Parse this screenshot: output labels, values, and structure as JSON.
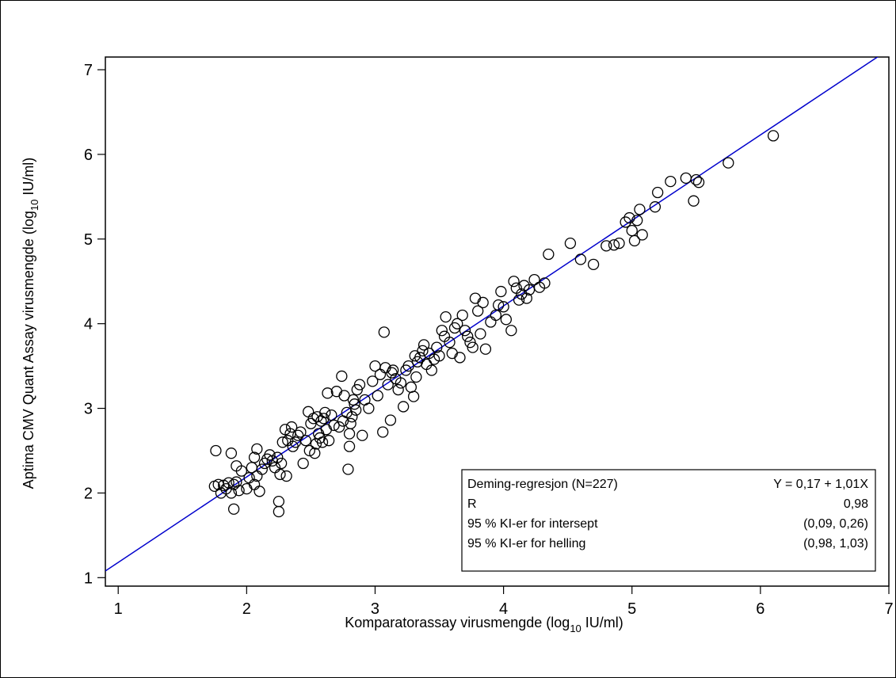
{
  "chart_data": {
    "type": "scatter",
    "xlabel_main": "Komparatorassay virusmengde (log",
    "xlabel_sub": "10",
    "xlabel_tail": " IU/ml)",
    "ylabel_main": "Aptima CMV Quant Assay virusmengde (log",
    "ylabel_sub": "10",
    "ylabel_tail": " IU/ml)",
    "xlim": [
      0.9,
      7.0
    ],
    "ylim": [
      0.9,
      7.15
    ],
    "xticks": [
      "1",
      "2",
      "3",
      "4",
      "5",
      "6",
      "7"
    ],
    "yticks": [
      "1",
      "2",
      "3",
      "4",
      "5",
      "6",
      "7"
    ],
    "regression": {
      "intercept": 0.17,
      "slope": 1.01,
      "color": "#0000cc"
    },
    "legend": {
      "rows": [
        {
          "label": "Deming-regresjon (N=227)",
          "value": "Y = 0,17 + 1,01X"
        },
        {
          "label": "R",
          "value": "0,98"
        },
        {
          "label": "95 % KI-er for intersept",
          "value": "(0,09, 0,26)"
        },
        {
          "label": "95 % KI-er for helling",
          "value": "(0,98, 1,03)"
        }
      ],
      "placement": "bottom-right"
    },
    "points": [
      [
        1.75,
        2.08
      ],
      [
        1.78,
        2.1
      ],
      [
        1.8,
        2.0
      ],
      [
        1.82,
        2.09
      ],
      [
        1.84,
        2.05
      ],
      [
        1.86,
        2.12
      ],
      [
        1.88,
        2.0
      ],
      [
        1.9,
        2.1
      ],
      [
        1.92,
        2.13
      ],
      [
        1.94,
        2.03
      ],
      [
        1.76,
        2.5
      ],
      [
        1.88,
        2.47
      ],
      [
        1.9,
        1.81
      ],
      [
        1.92,
        2.32
      ],
      [
        1.96,
        2.26
      ],
      [
        2.0,
        2.05
      ],
      [
        2.02,
        2.18
      ],
      [
        2.04,
        2.3
      ],
      [
        2.06,
        2.42
      ],
      [
        2.08,
        2.52
      ],
      [
        2.06,
        2.1
      ],
      [
        2.08,
        2.2
      ],
      [
        2.1,
        2.02
      ],
      [
        2.12,
        2.28
      ],
      [
        2.14,
        2.35
      ],
      [
        2.16,
        2.4
      ],
      [
        2.18,
        2.45
      ],
      [
        2.2,
        2.38
      ],
      [
        2.22,
        2.3
      ],
      [
        2.24,
        2.42
      ],
      [
        2.25,
        1.9
      ],
      [
        2.25,
        1.78
      ],
      [
        2.26,
        2.22
      ],
      [
        2.27,
        2.35
      ],
      [
        2.28,
        2.6
      ],
      [
        2.3,
        2.75
      ],
      [
        2.31,
        2.2
      ],
      [
        2.32,
        2.62
      ],
      [
        2.34,
        2.7
      ],
      [
        2.35,
        2.78
      ],
      [
        2.36,
        2.55
      ],
      [
        2.38,
        2.6
      ],
      [
        2.4,
        2.68
      ],
      [
        2.42,
        2.72
      ],
      [
        2.44,
        2.35
      ],
      [
        2.46,
        2.62
      ],
      [
        2.48,
        2.96
      ],
      [
        2.49,
        2.5
      ],
      [
        2.5,
        2.82
      ],
      [
        2.52,
        2.88
      ],
      [
        2.53,
        2.47
      ],
      [
        2.54,
        2.58
      ],
      [
        2.55,
        2.9
      ],
      [
        2.56,
        2.7
      ],
      [
        2.57,
        2.65
      ],
      [
        2.58,
        2.85
      ],
      [
        2.59,
        2.6
      ],
      [
        2.6,
        2.88
      ],
      [
        2.61,
        2.95
      ],
      [
        2.62,
        2.75
      ],
      [
        2.63,
        3.18
      ],
      [
        2.64,
        2.62
      ],
      [
        2.66,
        2.92
      ],
      [
        2.68,
        2.8
      ],
      [
        2.7,
        3.2
      ],
      [
        2.72,
        2.78
      ],
      [
        2.74,
        3.38
      ],
      [
        2.75,
        2.85
      ],
      [
        2.76,
        3.15
      ],
      [
        2.78,
        2.95
      ],
      [
        2.79,
        2.28
      ],
      [
        2.8,
        2.55
      ],
      [
        2.8,
        2.7
      ],
      [
        2.81,
        2.82
      ],
      [
        2.82,
        2.9
      ],
      [
        2.83,
        3.1
      ],
      [
        2.84,
        3.05
      ],
      [
        2.85,
        2.98
      ],
      [
        2.86,
        3.22
      ],
      [
        2.88,
        3.28
      ],
      [
        2.9,
        2.68
      ],
      [
        2.92,
        3.1
      ],
      [
        2.95,
        3.0
      ],
      [
        2.98,
        3.32
      ],
      [
        3.0,
        3.5
      ],
      [
        3.02,
        3.15
      ],
      [
        3.04,
        3.4
      ],
      [
        3.06,
        2.72
      ],
      [
        3.07,
        3.9
      ],
      [
        3.08,
        3.48
      ],
      [
        3.1,
        3.28
      ],
      [
        3.12,
        2.86
      ],
      [
        3.13,
        3.42
      ],
      [
        3.14,
        3.45
      ],
      [
        3.16,
        3.35
      ],
      [
        3.18,
        3.22
      ],
      [
        3.2,
        3.3
      ],
      [
        3.22,
        3.02
      ],
      [
        3.24,
        3.45
      ],
      [
        3.26,
        3.5
      ],
      [
        3.28,
        3.25
      ],
      [
        3.3,
        3.14
      ],
      [
        3.31,
        3.62
      ],
      [
        3.32,
        3.37
      ],
      [
        3.33,
        3.55
      ],
      [
        3.35,
        3.6
      ],
      [
        3.37,
        3.68
      ],
      [
        3.38,
        3.75
      ],
      [
        3.4,
        3.52
      ],
      [
        3.42,
        3.65
      ],
      [
        3.44,
        3.45
      ],
      [
        3.46,
        3.58
      ],
      [
        3.48,
        3.72
      ],
      [
        3.5,
        3.62
      ],
      [
        3.52,
        3.92
      ],
      [
        3.54,
        3.85
      ],
      [
        3.55,
        4.08
      ],
      [
        3.58,
        3.78
      ],
      [
        3.6,
        3.65
      ],
      [
        3.62,
        3.95
      ],
      [
        3.64,
        4.0
      ],
      [
        3.66,
        3.6
      ],
      [
        3.68,
        4.1
      ],
      [
        3.7,
        3.92
      ],
      [
        3.72,
        3.85
      ],
      [
        3.74,
        3.78
      ],
      [
        3.76,
        3.72
      ],
      [
        3.78,
        4.3
      ],
      [
        3.8,
        4.15
      ],
      [
        3.82,
        3.88
      ],
      [
        3.84,
        4.25
      ],
      [
        3.86,
        3.7
      ],
      [
        3.9,
        4.02
      ],
      [
        3.94,
        4.1
      ],
      [
        3.96,
        4.22
      ],
      [
        3.98,
        4.38
      ],
      [
        4.0,
        4.2
      ],
      [
        4.02,
        4.05
      ],
      [
        4.06,
        3.92
      ],
      [
        4.08,
        4.5
      ],
      [
        4.1,
        4.42
      ],
      [
        4.12,
        4.28
      ],
      [
        4.14,
        4.35
      ],
      [
        4.16,
        4.45
      ],
      [
        4.18,
        4.3
      ],
      [
        4.2,
        4.4
      ],
      [
        4.24,
        4.52
      ],
      [
        4.28,
        4.43
      ],
      [
        4.32,
        4.48
      ],
      [
        4.35,
        4.82
      ],
      [
        4.52,
        4.95
      ],
      [
        4.6,
        4.76
      ],
      [
        4.7,
        4.7
      ],
      [
        4.8,
        4.92
      ],
      [
        4.86,
        4.93
      ],
      [
        4.9,
        4.95
      ],
      [
        4.95,
        5.2
      ],
      [
        4.98,
        5.25
      ],
      [
        5.0,
        5.1
      ],
      [
        5.02,
        4.98
      ],
      [
        5.04,
        5.22
      ],
      [
        5.06,
        5.35
      ],
      [
        5.08,
        5.05
      ],
      [
        5.18,
        5.38
      ],
      [
        5.2,
        5.55
      ],
      [
        5.3,
        5.68
      ],
      [
        5.42,
        5.72
      ],
      [
        5.48,
        5.45
      ],
      [
        5.5,
        5.7
      ],
      [
        5.52,
        5.67
      ],
      [
        5.75,
        5.9
      ],
      [
        6.1,
        6.22
      ]
    ]
  }
}
